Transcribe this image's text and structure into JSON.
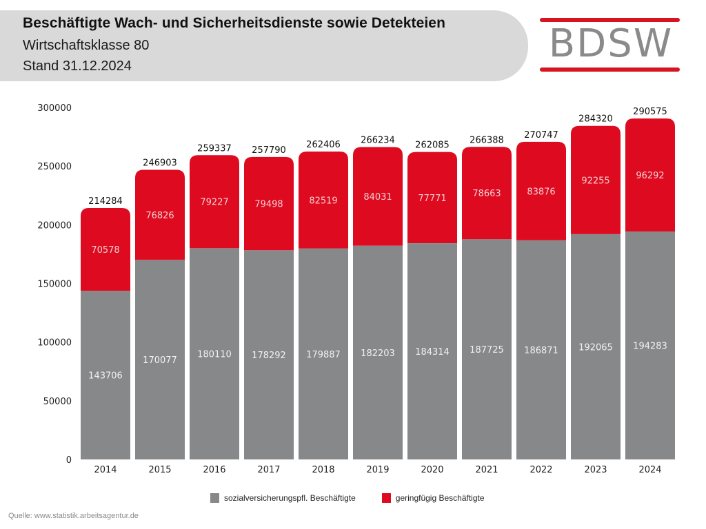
{
  "header": {
    "title": "Beschäftigte Wach- und Sicherheitsdienste sowie Detekteien",
    "subtitle": "Wirtschaftsklasse 80",
    "stand": "Stand 31.12.2024"
  },
  "logo": {
    "text": "BDSW",
    "accent_color": "#d7141f",
    "text_color": "#8a8a8a"
  },
  "source": "Quelle: www.statistik.arbeitsagentur.de",
  "chart_data": {
    "type": "bar",
    "stacked": true,
    "title": "Beschäftigte Wach- und Sicherheitsdienste sowie Detekteien",
    "xlabel": "",
    "ylabel": "",
    "ylim": [
      0,
      300000
    ],
    "yticks": [
      0,
      50000,
      100000,
      150000,
      200000,
      250000,
      300000
    ],
    "grid": false,
    "legend_position": "bottom",
    "categories": [
      "2014",
      "2015",
      "2016",
      "2017",
      "2018",
      "2019",
      "2020",
      "2021",
      "2022",
      "2023",
      "2024"
    ],
    "series": [
      {
        "name": "sozialversicherungspfl. Beschäftigte",
        "color": "#87888a",
        "values": [
          143706,
          170077,
          180110,
          178292,
          179887,
          182203,
          184314,
          187725,
          186871,
          192065,
          194283
        ]
      },
      {
        "name": "geringfügig Beschäftigte",
        "color": "#de0a1f",
        "values": [
          70578,
          76826,
          79227,
          79498,
          82519,
          84031,
          77771,
          78663,
          83876,
          92255,
          96292
        ]
      }
    ],
    "totals": [
      214284,
      246903,
      259337,
      257790,
      262406,
      266234,
      262085,
      266388,
      270747,
      284320,
      290575
    ]
  }
}
